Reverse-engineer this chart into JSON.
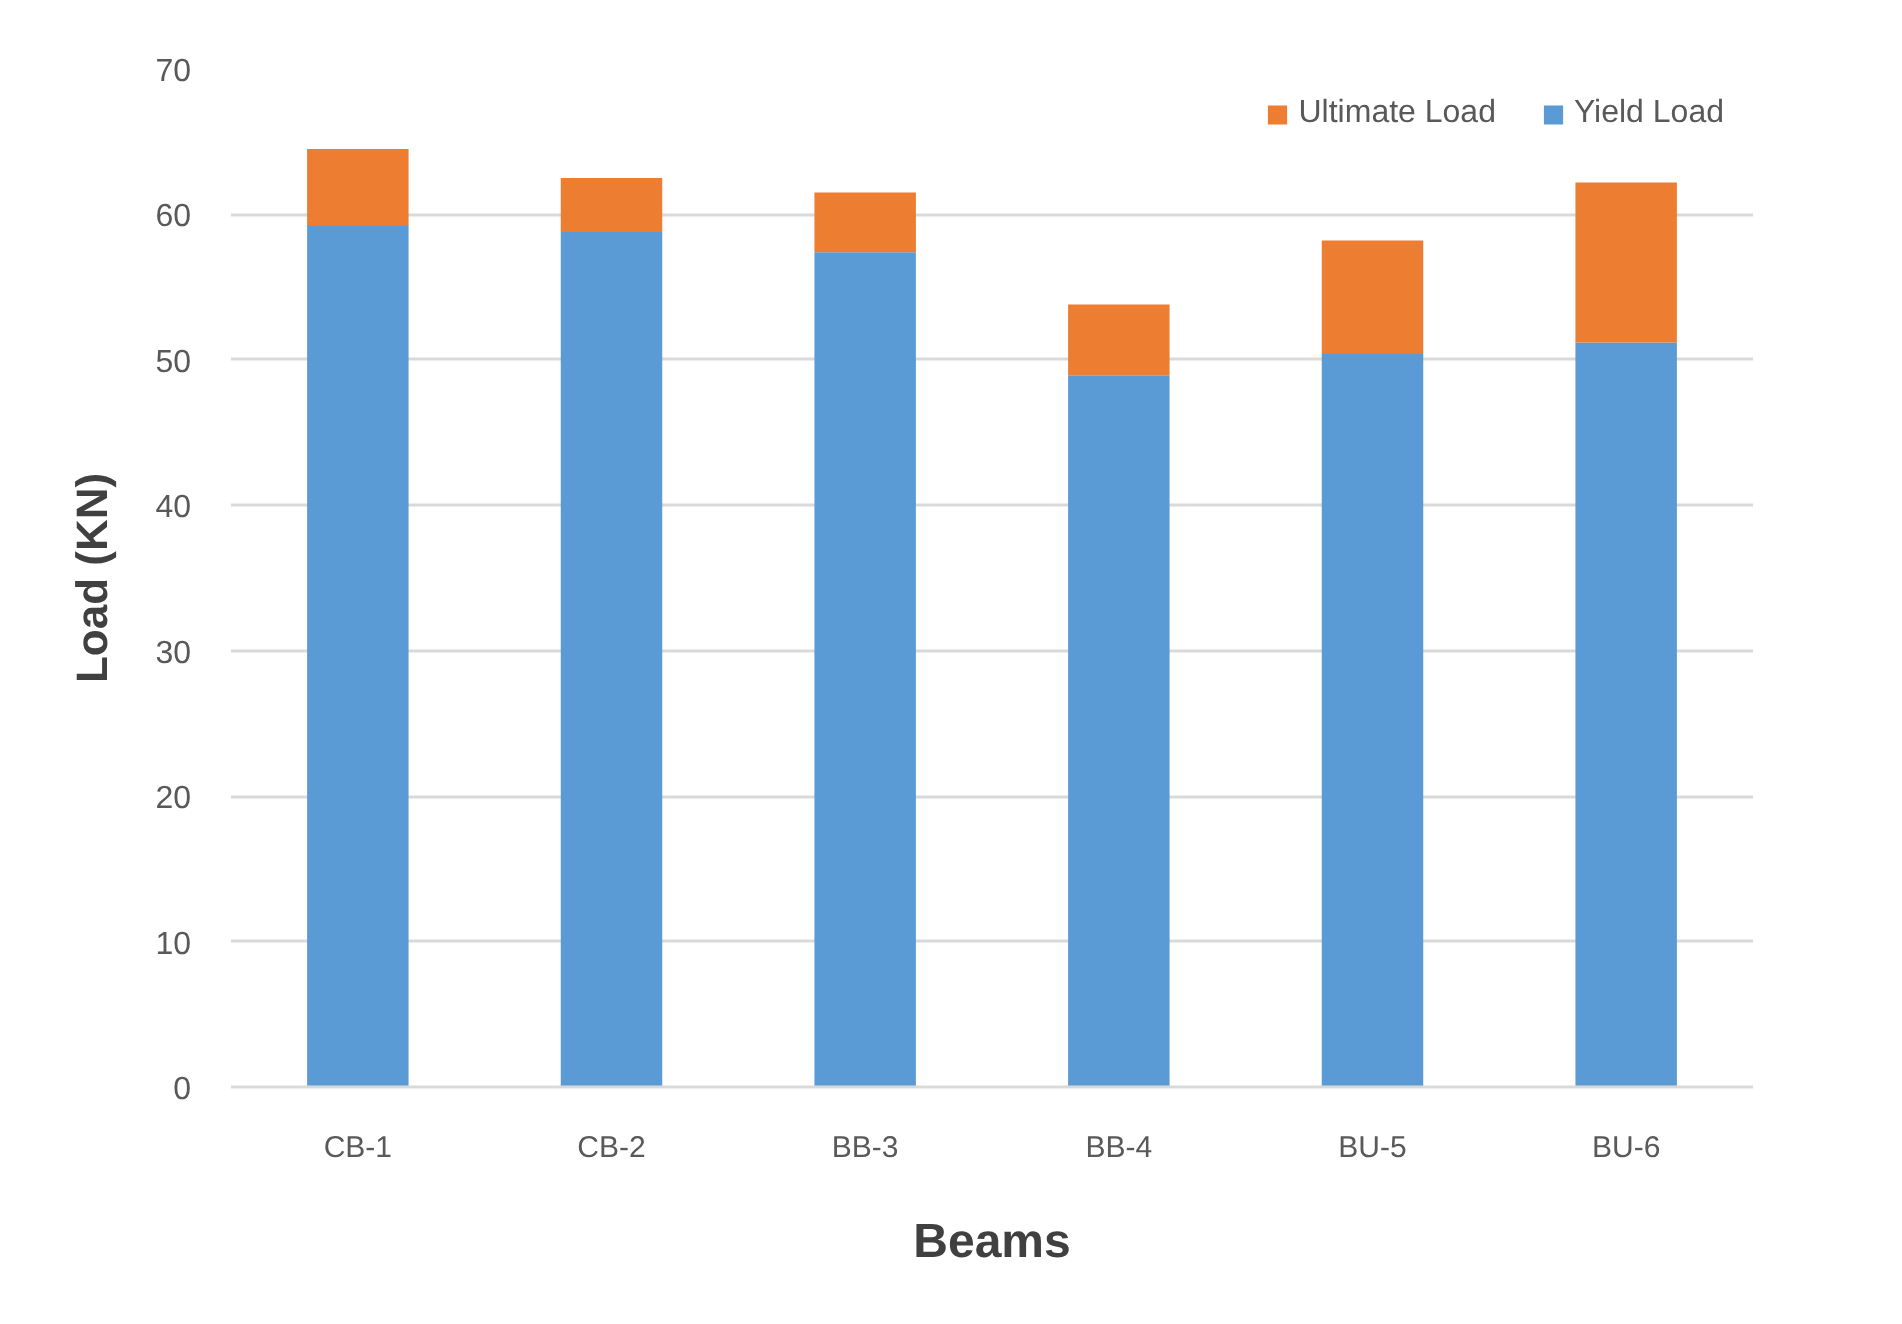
{
  "chart_data": {
    "type": "bar",
    "xlabel": "Beams",
    "ylabel": "Load (KN)",
    "categories": [
      "CB-1",
      "CB-2",
      "BB-3",
      "BB-4",
      "BU-5",
      "BU-6"
    ],
    "stacked": true,
    "series": [
      {
        "name": "Yield Load",
        "color": "#5b9bd5",
        "values": [
          59.2,
          58.8,
          57.4,
          48.9,
          50.4,
          51.2
        ]
      },
      {
        "name": "Ultimate Load",
        "color": "#ed7d31",
        "values": [
          5.3,
          3.7,
          4.1,
          4.9,
          7.8,
          11.0
        ]
      }
    ],
    "ylim": [
      0,
      70
    ],
    "yticks": [
      0,
      10,
      20,
      30,
      40,
      50,
      60,
      70
    ],
    "grid": "y",
    "legend": "top right"
  }
}
